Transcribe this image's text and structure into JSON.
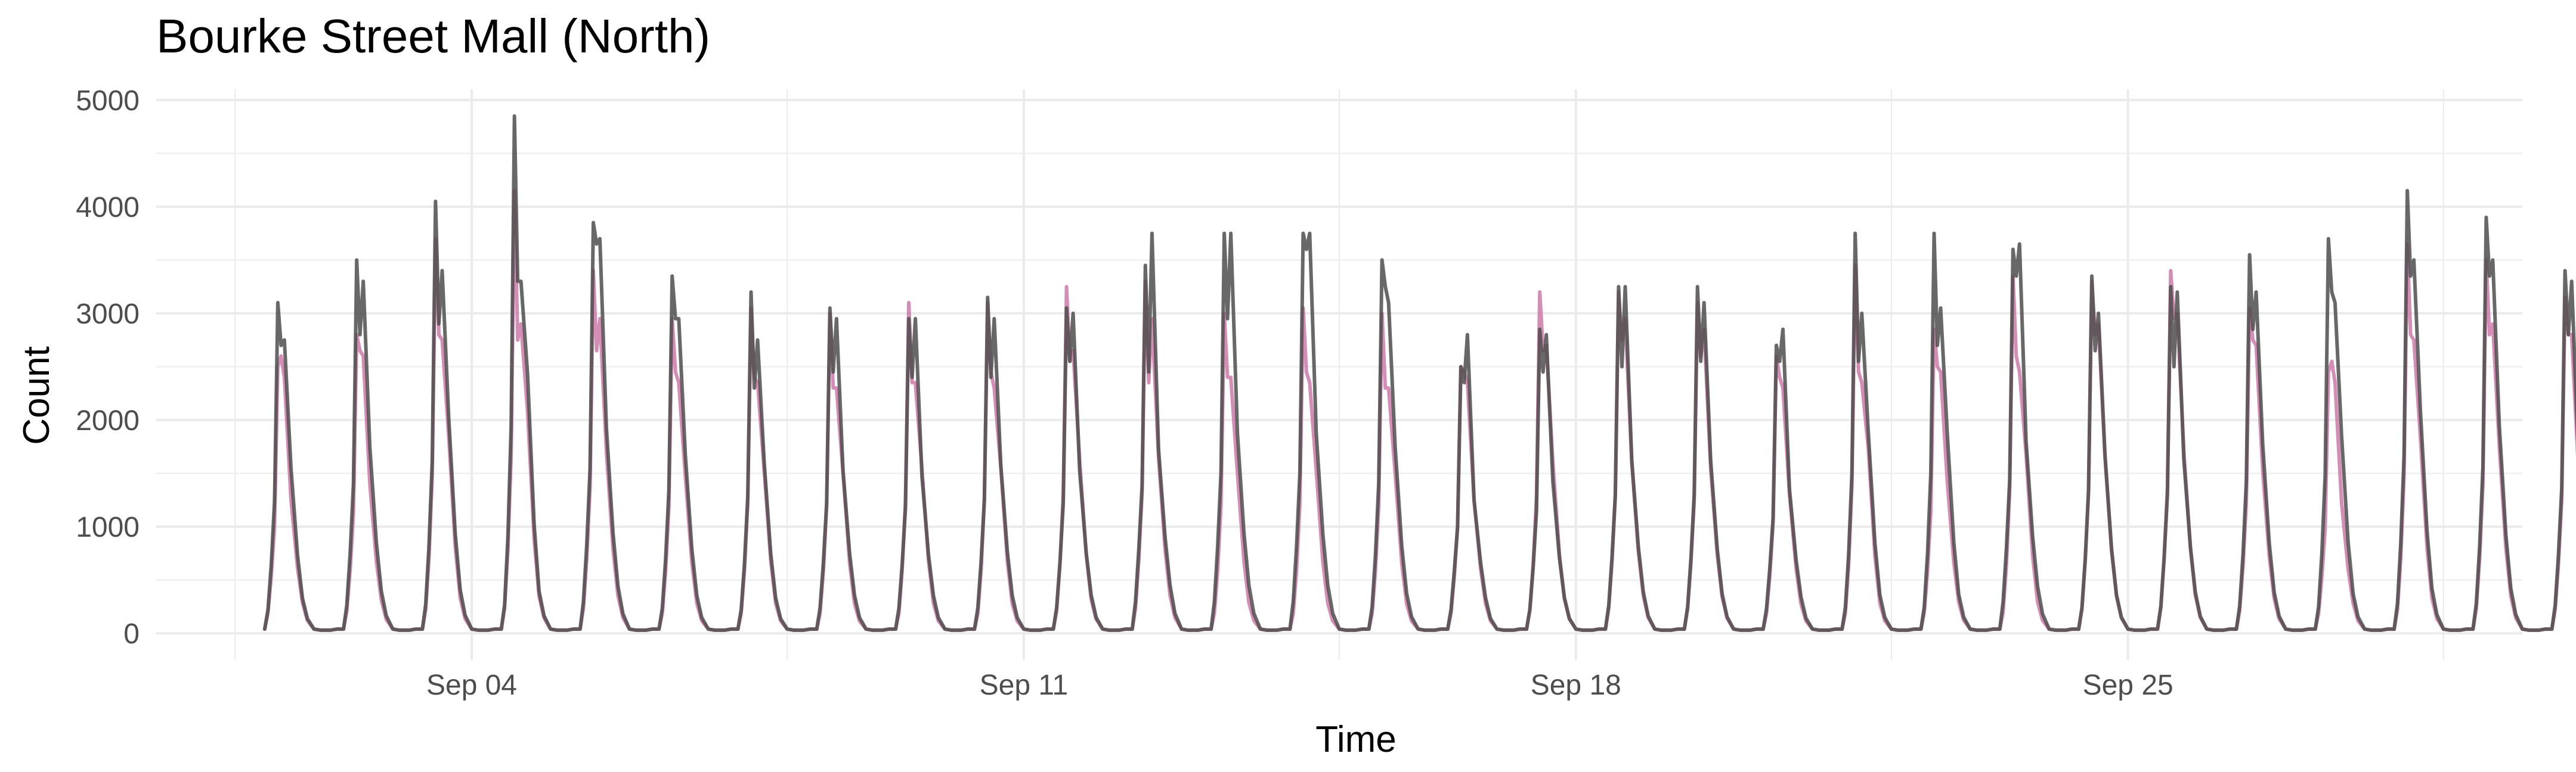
{
  "chart_data": {
    "type": "line",
    "title": "Bourke Street Mall (North)",
    "xlabel": "Time",
    "ylabel": "Count",
    "x_range": [
      "2017-08-31T00:00",
      "2017-09-30T00:00"
    ],
    "ylim": [
      -250,
      5100
    ],
    "y_ticks": [
      0,
      1000,
      2000,
      3000,
      4000,
      5000
    ],
    "x_ticks": [
      {
        "date": "2017-09-04",
        "label": "Sep 04"
      },
      {
        "date": "2017-09-11",
        "label": "Sep 11"
      },
      {
        "date": "2017-09-18",
        "label": "Sep 18"
      },
      {
        "date": "2017-09-25",
        "label": "Sep 25"
      }
    ],
    "x_minor_dates": [
      "2017-09-01",
      "2017-09-08",
      "2017-09-15",
      "2017-09-22",
      "2017-09-29"
    ],
    "grid": true,
    "legend": "none",
    "x_start": "2017-09-01T09:00",
    "x_step_hours": 24,
    "series": [
      {
        "color": "#cc79a7",
        "opacity": 0.85,
        "values": [
          2500,
          2800,
          3700,
          4150,
          3400,
          2950,
          3050,
          3000,
          3100,
          3100,
          3250,
          3300,
          3000,
          3050,
          3000,
          2500,
          3200,
          3200,
          3100,
          2600,
          3450,
          2850,
          3350,
          3300,
          3400,
          3050,
          2450,
          3650,
          3500,
          3150
        ],
        "dip": [
          2600,
          2650,
          2800,
          2750,
          2650,
          2450,
          2400,
          2300,
          2350,
          2450,
          2550,
          2350,
          2400,
          2450,
          2300,
          2450,
          2650,
          2750,
          2600,
          2400,
          2450,
          2500,
          2600,
          2800,
          2950,
          2750,
          2550,
          2800,
          2800,
          2800
        ],
        "end": [
          2400,
          2600,
          2750,
          2900,
          2950,
          2350,
          2350,
          2300,
          2350,
          2300,
          2650,
          2950,
          2400,
          2350,
          2300,
          2350,
          2700,
          2950,
          2850,
          2300,
          2350,
          2450,
          2450,
          2900,
          3000,
          2700,
          2350,
          2750,
          2900,
          2800
        ]
      },
      {
        "color": "#4d4d4d",
        "opacity": 0.85,
        "values": [
          3100,
          3500,
          4050,
          4850,
          3850,
          3350,
          3200,
          3050,
          2950,
          3150,
          3050,
          3450,
          3750,
          3750,
          3500,
          2500,
          2850,
          3250,
          3250,
          2700,
          3750,
          3750,
          3600,
          3350,
          3250,
          3550,
          3700,
          4150,
          3900,
          3400
        ],
        "dip": [
          2700,
          2800,
          2900,
          3300,
          3650,
          2950,
          2300,
          2450,
          2400,
          2400,
          2550,
          2450,
          2950,
          3600,
          3250,
          2350,
          2450,
          2500,
          2550,
          2550,
          2550,
          2700,
          3350,
          2650,
          2500,
          2850,
          3200,
          3350,
          3350,
          2800
        ],
        "end": [
          2750,
          3300,
          3400,
          3300,
          3700,
          2950,
          2750,
          2950,
          2950,
          2950,
          3000,
          3750,
          3750,
          3750,
          3100,
          2800,
          2800,
          3250,
          3100,
          2850,
          3000,
          3050,
          3650,
          3000,
          3200,
          3200,
          3100,
          3500,
          3500,
          3300
        ]
      }
    ]
  }
}
